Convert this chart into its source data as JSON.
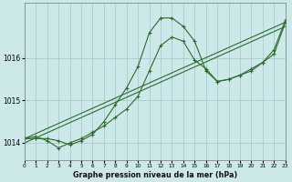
{
  "title": "Graphe pression niveau de la mer (hPa)",
  "bg_color": "#cce8e8",
  "grid_color": "#aacccc",
  "line_color": "#2d6b2d",
  "xlim": [
    0,
    23
  ],
  "ylim": [
    1013.6,
    1017.3
  ],
  "yticks": [
    1014,
    1015,
    1016
  ],
  "xticks": [
    0,
    1,
    2,
    3,
    4,
    5,
    6,
    7,
    8,
    9,
    10,
    11,
    12,
    13,
    14,
    15,
    16,
    17,
    18,
    19,
    20,
    21,
    22,
    23
  ],
  "series": [
    {
      "x": [
        0,
        1,
        2,
        3,
        4,
        5,
        6,
        7,
        8,
        9,
        10,
        11,
        12,
        13,
        14,
        15,
        16,
        17,
        18,
        19,
        20,
        21,
        22,
        23
      ],
      "y": [
        1014.1,
        1014.1,
        1014.1,
        1014.05,
        1013.95,
        1014.05,
        1014.2,
        1014.5,
        1014.9,
        1015.3,
        1015.8,
        1016.6,
        1016.95,
        1016.95,
        1016.75,
        1016.4,
        1015.7,
        1015.45,
        1015.5,
        1015.6,
        1015.7,
        1015.9,
        1016.2,
        1016.9
      ]
    },
    {
      "x": [
        0,
        23
      ],
      "y": [
        1014.1,
        1016.85
      ]
    },
    {
      "x": [
        0,
        23
      ],
      "y": [
        1014.0,
        1016.75
      ]
    },
    {
      "x": [
        0,
        1,
        2,
        3,
        4,
        5,
        6,
        7,
        8,
        9,
        10,
        11,
        12,
        13,
        14,
        15,
        16,
        17,
        18,
        19,
        20,
        21,
        22,
        23
      ],
      "y": [
        1014.1,
        1014.15,
        1014.05,
        1013.88,
        1014.0,
        1014.1,
        1014.25,
        1014.4,
        1014.6,
        1014.8,
        1015.1,
        1015.7,
        1016.3,
        1016.5,
        1016.4,
        1015.95,
        1015.75,
        1015.45,
        1015.5,
        1015.6,
        1015.75,
        1015.9,
        1016.1,
        1016.85
      ]
    }
  ]
}
